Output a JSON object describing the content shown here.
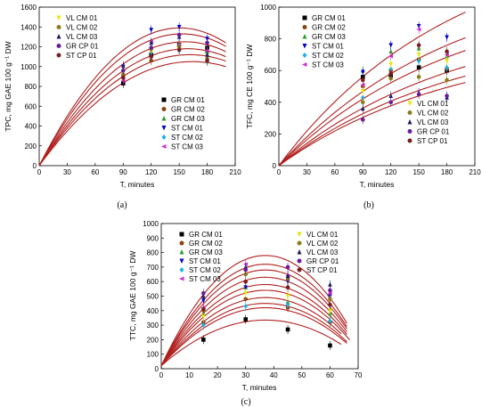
{
  "series_colors": {
    "GR CM 01": "#000000",
    "GR CM 02": "#8b4513",
    "GR CM 03": "#2ca02c",
    "ST CM 01": "#0000cc",
    "ST CM 02": "#1fb0e8",
    "ST CM 03": "#cc33cc",
    "VL CM 01": "#e6e600",
    "VL CM 02": "#8b7d1a",
    "VL CM 03": "#1a1a66",
    "GR CP 01": "#6a1b9a",
    "ST CP 01": "#7a1f1f"
  },
  "fit_color": "#b02020",
  "chart_data": [
    {
      "type": "scatter",
      "panel": "(a)",
      "xlabel": "T, minutes",
      "ylabel": "TPC, mg GAE 100 g⁻¹ DW",
      "xlim": [
        0,
        210
      ],
      "ylim": [
        0,
        1600
      ],
      "xticks": [
        0,
        30,
        60,
        90,
        120,
        150,
        180,
        210
      ],
      "yticks": [
        0,
        200,
        400,
        600,
        800,
        1000,
        1200,
        1400,
        1600
      ],
      "legend_top": [
        "VL CM 01",
        "VL CM 02",
        "VL CM 03",
        "GR CP 01",
        "ST CP 01"
      ],
      "legend_bottom": [
        "GR CM 01",
        "GR CM 02",
        "GR CM 03",
        "ST CM 01",
        "ST CM 02",
        "ST CM 03"
      ],
      "x": [
        0,
        90,
        120,
        150,
        180
      ],
      "series": [
        {
          "name": "GR CM 01",
          "values": [
            0,
            830,
            1120,
            1220,
            1190
          ]
        },
        {
          "name": "GR CM 02",
          "values": [
            0,
            900,
            1060,
            1210,
            1150
          ]
        },
        {
          "name": "GR CM 03",
          "values": [
            0,
            980,
            1200,
            1230,
            1150
          ]
        },
        {
          "name": "ST CM 01",
          "values": [
            0,
            1000,
            1370,
            1400,
            1280
          ]
        },
        {
          "name": "ST CM 02",
          "values": [
            0,
            880,
            1140,
            1160,
            1050
          ]
        },
        {
          "name": "ST CM 03",
          "values": [
            0,
            860,
            1250,
            1220,
            1160
          ]
        },
        {
          "name": "VL CM 01",
          "values": [
            0,
            950,
            1150,
            1180,
            1100
          ]
        },
        {
          "name": "VL CM 02",
          "values": [
            0,
            920,
            1180,
            1200,
            1080
          ]
        },
        {
          "name": "VL CM 03",
          "values": [
            0,
            1010,
            1240,
            1300,
            1120
          ]
        },
        {
          "name": "GR CP 01",
          "values": [
            0,
            960,
            1190,
            1320,
            1240
          ]
        },
        {
          "name": "ST CP 01",
          "values": [
            0,
            890,
            1100,
            1170,
            1060
          ]
        }
      ],
      "fits": [
        [
          5.25e-05,
          0.0,
          1050
        ],
        [
          6.67e-05,
          0.0,
          1120
        ],
        [
          6.4e-05,
          0.0,
          1180
        ],
        [
          5.5e-05,
          0.0,
          1250
        ],
        [
          5.3e-05,
          0.0,
          1330
        ],
        [
          6.4e-05,
          0.0,
          1390
        ]
      ]
    },
    {
      "type": "scatter",
      "panel": "(b)",
      "xlabel": "T, minutes",
      "ylabel": "TFC, mg CE 100 g⁻¹ DW",
      "xlim": [
        0,
        210
      ],
      "ylim": [
        0,
        1000
      ],
      "xticks": [
        0,
        30,
        60,
        90,
        120,
        150,
        180,
        210
      ],
      "yticks": [
        0,
        200,
        400,
        600,
        800,
        1000
      ],
      "legend_top": [
        "GR CM 01",
        "GR CM 02",
        "GR CM 03",
        "ST CM 01",
        "ST CM 02",
        "ST CM 03"
      ],
      "legend_bottom": [
        "VL CM 01",
        "VL CM 02",
        "VL CM 03",
        "GR CP 01",
        "ST CP 01"
      ],
      "x": [
        0,
        90,
        120,
        150,
        180
      ],
      "series": [
        {
          "name": "GR CM 01",
          "values": [
            0,
            560,
            570,
            620,
            600
          ]
        },
        {
          "name": "GR CM 02",
          "values": [
            0,
            500,
            600,
            670,
            610
          ]
        },
        {
          "name": "GR CM 03",
          "values": [
            0,
            600,
            720,
            740,
            690
          ]
        },
        {
          "name": "ST CM 01",
          "values": [
            0,
            590,
            760,
            880,
            810
          ]
        },
        {
          "name": "ST CM 02",
          "values": [
            0,
            430,
            610,
            660,
            620
          ]
        },
        {
          "name": "ST CM 03",
          "values": [
            0,
            510,
            690,
            860,
            700
          ]
        },
        {
          "name": "VL CM 01",
          "values": [
            0,
            470,
            640,
            700,
            660
          ]
        },
        {
          "name": "VL CM 02",
          "values": [
            0,
            400,
            550,
            560,
            540
          ]
        },
        {
          "name": "VL CM 03",
          "values": [
            0,
            360,
            440,
            460,
            430
          ]
        },
        {
          "name": "GR CP 01",
          "values": [
            0,
            290,
            400,
            450,
            440
          ]
        },
        {
          "name": "ST CP 01",
          "values": [
            0,
            540,
            580,
            760,
            720
          ]
        }
      ],
      "fits": [
        [
          0.0,
          2.6,
          0,
          520
        ],
        [
          0.0,
          3.0,
          0,
          560
        ],
        [
          0.0,
          3.4,
          0,
          620
        ],
        [
          0.0,
          3.9,
          0,
          720
        ],
        [
          0.0,
          4.3,
          0,
          800
        ],
        [
          0.0,
          4.7,
          0,
          960
        ]
      ]
    },
    {
      "type": "scatter",
      "panel": "(c)",
      "xlabel": "T, minutes",
      "ylabel": "TTC, mg GAE 100 g⁻¹ DW",
      "xlim": [
        0,
        70
      ],
      "ylim": [
        0,
        1000
      ],
      "xticks": [
        0,
        10,
        20,
        30,
        40,
        50,
        60,
        70
      ],
      "yticks": [
        0,
        100,
        200,
        300,
        400,
        500,
        600,
        700,
        800,
        900,
        1000
      ],
      "legend_left": [
        "GR CM 01",
        "GR CM 02",
        "GR CM 03",
        "ST CM 01",
        "ST CM 02",
        "ST CM 03"
      ],
      "legend_right": [
        "VL CM 01",
        "VL CM 02",
        "VL CM 03",
        "GR CP 01",
        "ST CP 01"
      ],
      "x": [
        0,
        15,
        30,
        45,
        60
      ],
      "series": [
        {
          "name": "GR CM 01",
          "values": [
            0,
            200,
            340,
            270,
            160
          ]
        },
        {
          "name": "GR CM 02",
          "values": [
            0,
            320,
            480,
            420,
            320
          ]
        },
        {
          "name": "GR CM 03",
          "values": [
            0,
            380,
            560,
            460,
            380
          ]
        },
        {
          "name": "ST CM 01",
          "values": [
            0,
            470,
            560,
            600,
            500
          ]
        },
        {
          "name": "ST CM 02",
          "values": [
            0,
            300,
            430,
            440,
            330
          ]
        },
        {
          "name": "ST CM 03",
          "values": [
            0,
            420,
            720,
            640,
            520
          ]
        },
        {
          "name": "VL CM 01",
          "values": [
            0,
            360,
            520,
            500,
            400
          ]
        },
        {
          "name": "VL CM 02",
          "values": [
            0,
            400,
            650,
            620,
            480
          ]
        },
        {
          "name": "VL CM 03",
          "values": [
            0,
            500,
            700,
            640,
            580
          ]
        },
        {
          "name": "GR CP 01",
          "values": [
            0,
            520,
            680,
            700,
            540
          ]
        },
        {
          "name": "ST CP 01",
          "values": [
            0,
            410,
            600,
            560,
            440
          ]
        }
      ],
      "fits": [
        [
          -0.00092,
          0.059,
          315,
          64
        ],
        [
          -0.0011,
          0.07,
          400,
          66
        ],
        [
          -0.00115,
          0.073,
          430,
          66
        ],
        [
          -0.0012,
          0.076,
          470,
          64
        ],
        [
          -0.00125,
          0.08,
          520,
          67
        ],
        [
          -0.00125,
          0.08,
          560,
          66
        ],
        [
          -0.0013,
          0.083,
          610,
          66
        ],
        [
          -0.00135,
          0.086,
          660,
          66
        ],
        [
          -0.00135,
          0.086,
          700,
          66
        ],
        [
          -0.0014,
          0.089,
          760,
          66
        ]
      ]
    }
  ]
}
